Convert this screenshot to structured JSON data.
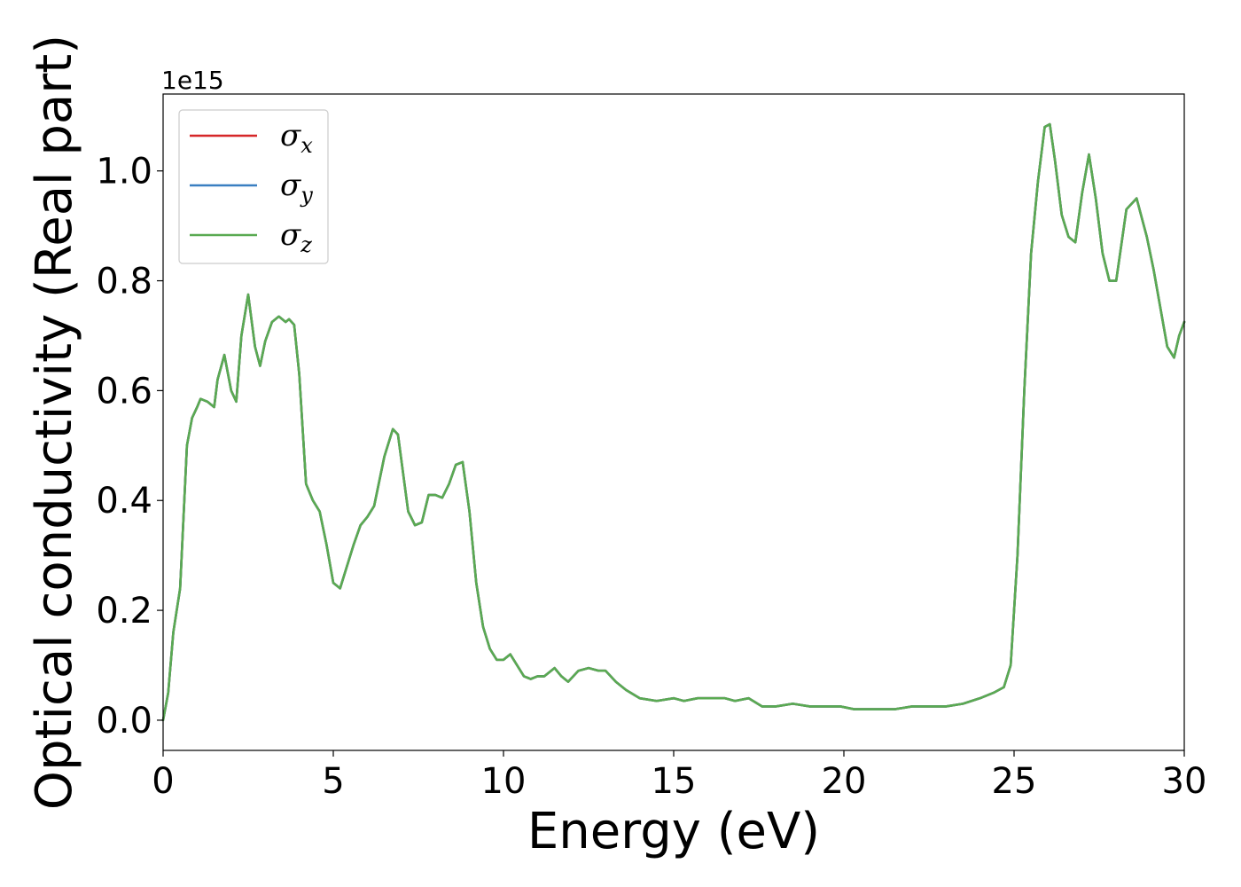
{
  "chart_data": {
    "type": "line",
    "xlabel": "Energy (eV)",
    "ylabel": "Optical conductivity (Real part)",
    "y_offset_label": "1e15",
    "xlim": [
      0,
      30
    ],
    "ylim": [
      -0.055,
      1.14
    ],
    "x_ticks": [
      0,
      5,
      10,
      15,
      20,
      25,
      30
    ],
    "x_tick_labels": [
      "0",
      "5",
      "10",
      "15",
      "20",
      "25",
      "30"
    ],
    "y_ticks": [
      0.0,
      0.2,
      0.4,
      0.6,
      0.8,
      1.0
    ],
    "y_tick_labels": [
      "0.0",
      "0.2",
      "0.4",
      "0.6",
      "0.8",
      "1.0"
    ],
    "grid": false,
    "legend_position": "top-left",
    "series": [
      {
        "name": "σx",
        "base": "σ",
        "sub": "x",
        "color": "#d62728",
        "x": [
          0,
          0.15,
          0.3,
          0.5,
          0.7,
          0.85,
          1.0,
          1.1,
          1.3,
          1.5,
          1.6,
          1.8,
          2.0,
          2.15,
          2.3,
          2.5,
          2.7,
          2.85,
          3.0,
          3.2,
          3.4,
          3.5,
          3.6,
          3.7,
          3.85,
          4.0,
          4.2,
          4.4,
          4.6,
          4.8,
          5.0,
          5.2,
          5.4,
          5.6,
          5.8,
          6.0,
          6.2,
          6.5,
          6.75,
          6.9,
          7.05,
          7.2,
          7.4,
          7.6,
          7.8,
          8.0,
          8.2,
          8.4,
          8.6,
          8.8,
          9.0,
          9.2,
          9.4,
          9.6,
          9.8,
          10.0,
          10.2,
          10.4,
          10.6,
          10.8,
          11.0,
          11.2,
          11.5,
          11.7,
          11.9,
          12.2,
          12.5,
          12.8,
          13.0,
          13.3,
          13.6,
          14.0,
          14.5,
          15.0,
          15.3,
          15.7,
          16.0,
          16.5,
          16.8,
          17.2,
          17.6,
          18.0,
          18.5,
          19.0,
          19.5,
          19.9,
          20.3,
          20.7,
          21.0,
          21.5,
          22.0,
          22.5,
          23.0,
          23.5,
          24.0,
          24.4,
          24.7,
          24.9,
          25.1,
          25.3,
          25.5,
          25.7,
          25.9,
          26.05,
          26.2,
          26.4,
          26.6,
          26.8,
          27.0,
          27.2,
          27.4,
          27.6,
          27.8,
          28.0,
          28.3,
          28.6,
          28.9,
          29.1,
          29.3,
          29.5,
          29.7,
          29.85,
          30.0
        ],
        "y": [
          0.0,
          0.05,
          0.16,
          0.24,
          0.5,
          0.55,
          0.57,
          0.585,
          0.58,
          0.57,
          0.62,
          0.665,
          0.6,
          0.58,
          0.7,
          0.775,
          0.68,
          0.645,
          0.69,
          0.725,
          0.735,
          0.73,
          0.725,
          0.73,
          0.72,
          0.63,
          0.43,
          0.4,
          0.38,
          0.32,
          0.25,
          0.24,
          0.28,
          0.32,
          0.355,
          0.37,
          0.39,
          0.48,
          0.53,
          0.52,
          0.45,
          0.38,
          0.355,
          0.36,
          0.41,
          0.41,
          0.405,
          0.43,
          0.465,
          0.47,
          0.38,
          0.25,
          0.17,
          0.13,
          0.11,
          0.11,
          0.12,
          0.1,
          0.08,
          0.075,
          0.08,
          0.08,
          0.095,
          0.08,
          0.07,
          0.09,
          0.095,
          0.09,
          0.09,
          0.07,
          0.055,
          0.04,
          0.035,
          0.04,
          0.035,
          0.04,
          0.04,
          0.04,
          0.035,
          0.04,
          0.025,
          0.025,
          0.03,
          0.025,
          0.025,
          0.025,
          0.02,
          0.02,
          0.02,
          0.02,
          0.025,
          0.025,
          0.025,
          0.03,
          0.04,
          0.05,
          0.06,
          0.1,
          0.3,
          0.6,
          0.85,
          0.98,
          1.08,
          1.085,
          1.02,
          0.92,
          0.88,
          0.87,
          0.96,
          1.03,
          0.95,
          0.85,
          0.8,
          0.8,
          0.93,
          0.95,
          0.88,
          0.82,
          0.75,
          0.68,
          0.66,
          0.7,
          0.725
        ]
      },
      {
        "name": "σy",
        "base": "σ",
        "sub": "y",
        "color": "#3a7fc1",
        "x": [
          0,
          0.15,
          0.3,
          0.5,
          0.7,
          0.85,
          1.0,
          1.1,
          1.3,
          1.5,
          1.6,
          1.8,
          2.0,
          2.15,
          2.3,
          2.5,
          2.7,
          2.85,
          3.0,
          3.2,
          3.4,
          3.5,
          3.6,
          3.7,
          3.85,
          4.0,
          4.2,
          4.4,
          4.6,
          4.8,
          5.0,
          5.2,
          5.4,
          5.6,
          5.8,
          6.0,
          6.2,
          6.5,
          6.75,
          6.9,
          7.05,
          7.2,
          7.4,
          7.6,
          7.8,
          8.0,
          8.2,
          8.4,
          8.6,
          8.8,
          9.0,
          9.2,
          9.4,
          9.6,
          9.8,
          10.0,
          10.2,
          10.4,
          10.6,
          10.8,
          11.0,
          11.2,
          11.5,
          11.7,
          11.9,
          12.2,
          12.5,
          12.8,
          13.0,
          13.3,
          13.6,
          14.0,
          14.5,
          15.0,
          15.3,
          15.7,
          16.0,
          16.5,
          16.8,
          17.2,
          17.6,
          18.0,
          18.5,
          19.0,
          19.5,
          19.9,
          20.3,
          20.7,
          21.0,
          21.5,
          22.0,
          22.5,
          23.0,
          23.5,
          24.0,
          24.4,
          24.7,
          24.9,
          25.1,
          25.3,
          25.5,
          25.7,
          25.9,
          26.05,
          26.2,
          26.4,
          26.6,
          26.8,
          27.0,
          27.2,
          27.4,
          27.6,
          27.8,
          28.0,
          28.3,
          28.6,
          28.9,
          29.1,
          29.3,
          29.5,
          29.7,
          29.85,
          30.0
        ],
        "y": [
          0.0,
          0.05,
          0.16,
          0.24,
          0.5,
          0.55,
          0.57,
          0.585,
          0.58,
          0.57,
          0.62,
          0.665,
          0.6,
          0.58,
          0.7,
          0.775,
          0.68,
          0.645,
          0.69,
          0.725,
          0.735,
          0.73,
          0.725,
          0.73,
          0.72,
          0.63,
          0.43,
          0.4,
          0.38,
          0.32,
          0.25,
          0.24,
          0.28,
          0.32,
          0.355,
          0.37,
          0.39,
          0.48,
          0.53,
          0.52,
          0.45,
          0.38,
          0.355,
          0.36,
          0.41,
          0.41,
          0.405,
          0.43,
          0.465,
          0.47,
          0.38,
          0.25,
          0.17,
          0.13,
          0.11,
          0.11,
          0.12,
          0.1,
          0.08,
          0.075,
          0.08,
          0.08,
          0.095,
          0.08,
          0.07,
          0.09,
          0.095,
          0.09,
          0.09,
          0.07,
          0.055,
          0.04,
          0.035,
          0.04,
          0.035,
          0.04,
          0.04,
          0.04,
          0.035,
          0.04,
          0.025,
          0.025,
          0.03,
          0.025,
          0.025,
          0.025,
          0.02,
          0.02,
          0.02,
          0.02,
          0.025,
          0.025,
          0.025,
          0.03,
          0.04,
          0.05,
          0.06,
          0.1,
          0.3,
          0.6,
          0.85,
          0.98,
          1.08,
          1.085,
          1.02,
          0.92,
          0.88,
          0.87,
          0.96,
          1.03,
          0.95,
          0.85,
          0.8,
          0.8,
          0.93,
          0.95,
          0.88,
          0.82,
          0.75,
          0.68,
          0.66,
          0.7,
          0.725
        ]
      },
      {
        "name": "σz",
        "base": "σ",
        "sub": "z",
        "color": "#5aaa52",
        "x": [
          0,
          0.15,
          0.3,
          0.5,
          0.7,
          0.85,
          1.0,
          1.1,
          1.3,
          1.5,
          1.6,
          1.8,
          2.0,
          2.15,
          2.3,
          2.5,
          2.7,
          2.85,
          3.0,
          3.2,
          3.4,
          3.5,
          3.6,
          3.7,
          3.85,
          4.0,
          4.2,
          4.4,
          4.6,
          4.8,
          5.0,
          5.2,
          5.4,
          5.6,
          5.8,
          6.0,
          6.2,
          6.5,
          6.75,
          6.9,
          7.05,
          7.2,
          7.4,
          7.6,
          7.8,
          8.0,
          8.2,
          8.4,
          8.6,
          8.8,
          9.0,
          9.2,
          9.4,
          9.6,
          9.8,
          10.0,
          10.2,
          10.4,
          10.6,
          10.8,
          11.0,
          11.2,
          11.5,
          11.7,
          11.9,
          12.2,
          12.5,
          12.8,
          13.0,
          13.3,
          13.6,
          14.0,
          14.5,
          15.0,
          15.3,
          15.7,
          16.0,
          16.5,
          16.8,
          17.2,
          17.6,
          18.0,
          18.5,
          19.0,
          19.5,
          19.9,
          20.3,
          20.7,
          21.0,
          21.5,
          22.0,
          22.5,
          23.0,
          23.5,
          24.0,
          24.4,
          24.7,
          24.9,
          25.1,
          25.3,
          25.5,
          25.7,
          25.9,
          26.05,
          26.2,
          26.4,
          26.6,
          26.8,
          27.0,
          27.2,
          27.4,
          27.6,
          27.8,
          28.0,
          28.3,
          28.6,
          28.9,
          29.1,
          29.3,
          29.5,
          29.7,
          29.85,
          30.0
        ],
        "y": [
          0.0,
          0.05,
          0.16,
          0.24,
          0.5,
          0.55,
          0.57,
          0.585,
          0.58,
          0.57,
          0.62,
          0.665,
          0.6,
          0.58,
          0.7,
          0.775,
          0.68,
          0.645,
          0.69,
          0.725,
          0.735,
          0.73,
          0.725,
          0.73,
          0.72,
          0.63,
          0.43,
          0.4,
          0.38,
          0.32,
          0.25,
          0.24,
          0.28,
          0.32,
          0.355,
          0.37,
          0.39,
          0.48,
          0.53,
          0.52,
          0.45,
          0.38,
          0.355,
          0.36,
          0.41,
          0.41,
          0.405,
          0.43,
          0.465,
          0.47,
          0.38,
          0.25,
          0.17,
          0.13,
          0.11,
          0.11,
          0.12,
          0.1,
          0.08,
          0.075,
          0.08,
          0.08,
          0.095,
          0.08,
          0.07,
          0.09,
          0.095,
          0.09,
          0.09,
          0.07,
          0.055,
          0.04,
          0.035,
          0.04,
          0.035,
          0.04,
          0.04,
          0.04,
          0.035,
          0.04,
          0.025,
          0.025,
          0.03,
          0.025,
          0.025,
          0.025,
          0.02,
          0.02,
          0.02,
          0.02,
          0.025,
          0.025,
          0.025,
          0.03,
          0.04,
          0.05,
          0.06,
          0.1,
          0.3,
          0.6,
          0.85,
          0.98,
          1.08,
          1.085,
          1.02,
          0.92,
          0.88,
          0.87,
          0.96,
          1.03,
          0.95,
          0.85,
          0.8,
          0.8,
          0.93,
          0.95,
          0.88,
          0.82,
          0.75,
          0.68,
          0.66,
          0.7,
          0.725
        ]
      }
    ]
  }
}
